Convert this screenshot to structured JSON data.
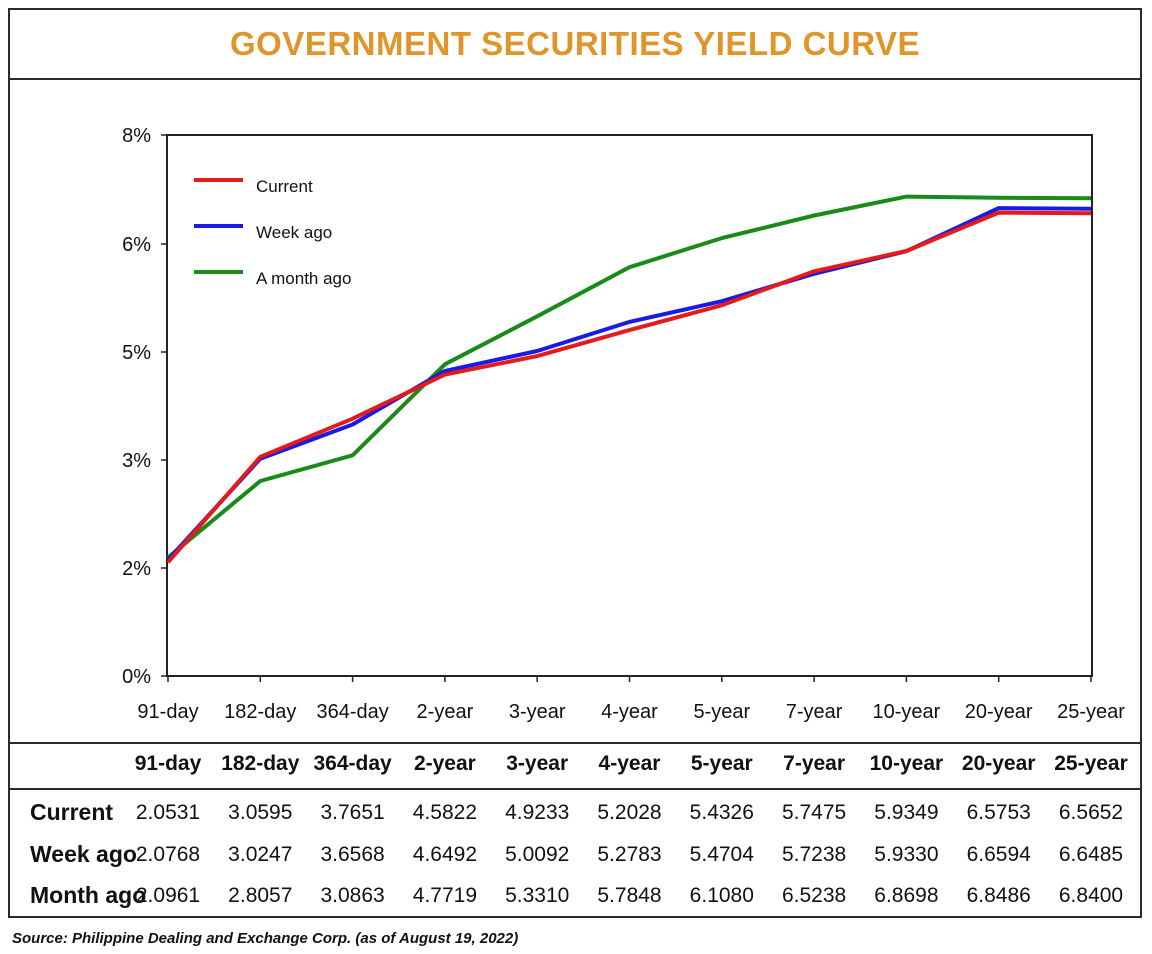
{
  "title": "GOVERNMENT SECURITIES YIELD CURVE",
  "title_color": "#e0952a",
  "chart_data": {
    "type": "line",
    "categories": [
      "91-day",
      "182-day",
      "364-day",
      "2-year",
      "3-year",
      "4-year",
      "5-year",
      "7-year",
      "10-year",
      "20-year",
      "25-year"
    ],
    "y_tick_labels": [
      "0%",
      "2%",
      "3%",
      "5%",
      "6%",
      "8%"
    ],
    "ylim": [
      0,
      8
    ],
    "legend_position": "top-left",
    "grid": false,
    "series": [
      {
        "name": "Current",
        "color": "#e31b1b",
        "values": [
          2.0531,
          3.0595,
          3.7651,
          4.5822,
          4.9233,
          5.2028,
          5.4326,
          5.7475,
          5.9349,
          6.5753,
          6.5652
        ]
      },
      {
        "name": "Week ago",
        "color": "#1a1ae6",
        "values": [
          2.0768,
          3.0247,
          3.6568,
          4.6492,
          5.0092,
          5.2783,
          5.4704,
          5.7238,
          5.933,
          6.6594,
          6.6485
        ]
      },
      {
        "name": "A month ago",
        "color": "#1a8a1a",
        "values": [
          2.0961,
          2.8057,
          3.0863,
          4.7719,
          5.331,
          5.7848,
          6.108,
          6.5238,
          6.8698,
          6.8486,
          6.84
        ]
      }
    ]
  },
  "table": {
    "columns": [
      "91-day",
      "182-day",
      "364-day",
      "2-year",
      "3-year",
      "4-year",
      "5-year",
      "7-year",
      "10-year",
      "20-year",
      "25-year"
    ],
    "rows": [
      {
        "label": "Current",
        "values": [
          "2.0531",
          "3.0595",
          "3.7651",
          "4.5822",
          "4.9233",
          "5.2028",
          "5.4326",
          "5.7475",
          "5.9349",
          "6.5753",
          "6.5652"
        ]
      },
      {
        "label": "Week ago",
        "values": [
          "2.0768",
          "3.0247",
          "3.6568",
          "4.6492",
          "5.0092",
          "5.2783",
          "5.4704",
          "5.7238",
          "5.9330",
          "6.6594",
          "6.6485"
        ]
      },
      {
        "label": "Month ago",
        "values": [
          "2.0961",
          "2.8057",
          "3.0863",
          "4.7719",
          "5.3310",
          "5.7848",
          "6.1080",
          "6.5238",
          "6.8698",
          "6.8486",
          "6.8400"
        ]
      }
    ]
  },
  "source": "Source: Philippine Dealing and Exchange Corp. (as of August 19, 2022)"
}
